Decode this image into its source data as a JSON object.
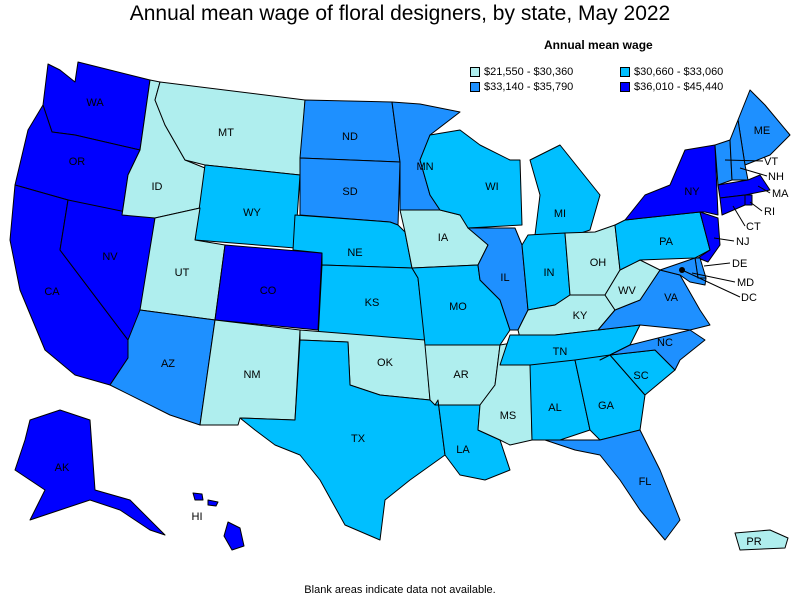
{
  "title": "Annual mean wage of floral designers, by state, May 2022",
  "legend": {
    "title": "Annual mean wage",
    "items": [
      {
        "range": "$21,550 - $30,360",
        "color": "#AFEEEE"
      },
      {
        "range": "$30,660 - $33,060",
        "color": "#00BFFF"
      },
      {
        "range": "$33,140 - $35,790",
        "color": "#1E90FF"
      },
      {
        "range": "$36,010 - $45,440",
        "color": "#0000FF"
      }
    ]
  },
  "footnote": "Blank areas indicate data not available.",
  "states": {
    "WA": {
      "label": "WA",
      "tier": 3
    },
    "OR": {
      "label": "OR",
      "tier": 3
    },
    "CA": {
      "label": "CA",
      "tier": 3
    },
    "NV": {
      "label": "NV",
      "tier": 3
    },
    "ID": {
      "label": "ID",
      "tier": 0
    },
    "MT": {
      "label": "MT",
      "tier": 0
    },
    "WY": {
      "label": "WY",
      "tier": 1
    },
    "UT": {
      "label": "UT",
      "tier": 0
    },
    "CO": {
      "label": "CO",
      "tier": 3
    },
    "AZ": {
      "label": "AZ",
      "tier": 2
    },
    "NM": {
      "label": "NM",
      "tier": 0
    },
    "ND": {
      "label": "ND",
      "tier": 2
    },
    "SD": {
      "label": "SD",
      "tier": 2
    },
    "NE": {
      "label": "NE",
      "tier": 1
    },
    "KS": {
      "label": "KS",
      "tier": 1
    },
    "OK": {
      "label": "OK",
      "tier": 0
    },
    "TX": {
      "label": "TX",
      "tier": 1
    },
    "MN": {
      "label": "MN",
      "tier": 2
    },
    "IA": {
      "label": "IA",
      "tier": 0
    },
    "MO": {
      "label": "MO",
      "tier": 1
    },
    "AR": {
      "label": "AR",
      "tier": 0
    },
    "LA": {
      "label": "LA",
      "tier": 1
    },
    "WI": {
      "label": "WI",
      "tier": 1
    },
    "IL": {
      "label": "IL",
      "tier": 2
    },
    "MS": {
      "label": "MS",
      "tier": 0
    },
    "MI": {
      "label": "MI",
      "tier": 1
    },
    "IN": {
      "label": "IN",
      "tier": 1
    },
    "OH": {
      "label": "OH",
      "tier": 0
    },
    "KY": {
      "label": "KY",
      "tier": 0
    },
    "TN": {
      "label": "TN",
      "tier": 1
    },
    "AL": {
      "label": "AL",
      "tier": 1
    },
    "GA": {
      "label": "GA",
      "tier": 1
    },
    "FL": {
      "label": "FL",
      "tier": 2
    },
    "SC": {
      "label": "SC",
      "tier": 1
    },
    "NC": {
      "label": "NC",
      "tier": 2
    },
    "VA": {
      "label": "VA",
      "tier": 2
    },
    "WV": {
      "label": "WV",
      "tier": 0
    },
    "PA": {
      "label": "PA",
      "tier": 1
    },
    "NY": {
      "label": "NY",
      "tier": 3
    },
    "ME": {
      "label": "ME",
      "tier": 2
    },
    "VT": {
      "label": "VT",
      "tier": 2
    },
    "NH": {
      "label": "NH",
      "tier": 2
    },
    "MA": {
      "label": "MA",
      "tier": 3
    },
    "RI": {
      "label": "RI",
      "tier": 3
    },
    "CT": {
      "label": "CT",
      "tier": 3
    },
    "NJ": {
      "label": "NJ",
      "tier": 3
    },
    "DE": {
      "label": "DE",
      "tier": 2
    },
    "MD": {
      "label": "MD",
      "tier": 2
    },
    "DC": {
      "label": "DC",
      "tier": 3
    },
    "AK": {
      "label": "AK",
      "tier": 3
    },
    "HI": {
      "label": "HI",
      "tier": 3
    },
    "PR": {
      "label": "PR",
      "tier": 0
    }
  }
}
